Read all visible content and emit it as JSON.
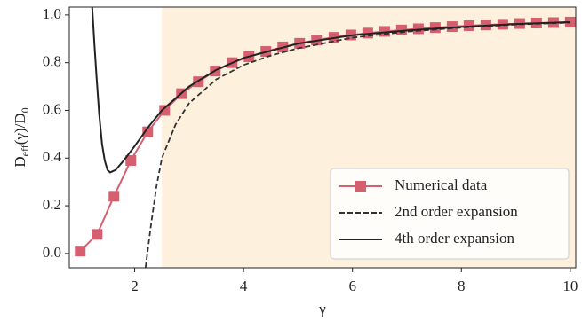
{
  "chart_data": {
    "type": "line",
    "xlabel": "γ",
    "ylabel": [
      "D",
      "eff",
      "(γ)/D",
      "0"
    ],
    "xlim": [
      0.8,
      10.1
    ],
    "ylim": [
      -0.06,
      1.033
    ],
    "xticks": [
      2,
      4,
      6,
      8,
      10
    ],
    "yticks": [
      {
        "value": 0,
        "label": "0.0"
      },
      0.2,
      0.4,
      0.6,
      0.8,
      {
        "value": 1,
        "label": "1.0"
      }
    ],
    "shade": {
      "xmin": 2.5,
      "color": "#fdf0dc"
    },
    "legend": "lower right",
    "series": [
      {
        "name": "Numerical data",
        "color": "#d65f6f",
        "style": "solid",
        "marker": "square",
        "x": [
          1.0,
          1.31,
          1.62,
          1.93,
          2.24,
          2.55,
          2.86,
          3.17,
          3.48,
          3.79,
          4.1,
          4.41,
          4.72,
          5.03,
          5.34,
          5.66,
          5.97,
          6.28,
          6.59,
          6.9,
          7.21,
          7.52,
          7.83,
          8.14,
          8.45,
          8.76,
          9.07,
          9.38,
          9.69,
          10.0
        ],
        "values": [
          0.01,
          0.08,
          0.24,
          0.39,
          0.51,
          0.6,
          0.67,
          0.72,
          0.765,
          0.8,
          0.825,
          0.847,
          0.866,
          0.881,
          0.895,
          0.906,
          0.916,
          0.924,
          0.931,
          0.937,
          0.942,
          0.947,
          0.951,
          0.955,
          0.958,
          0.961,
          0.964,
          0.966,
          0.968,
          0.97
        ]
      },
      {
        "name": "2nd order expansion",
        "color": "#333333",
        "style": "dashed",
        "x": [
          2.2,
          2.3,
          2.4,
          2.5,
          2.75,
          3,
          3.5,
          4,
          4.5,
          5,
          6,
          7,
          8,
          9,
          10
        ],
        "values": [
          -0.06,
          0.12,
          0.28,
          0.4,
          0.54,
          0.63,
          0.73,
          0.79,
          0.83,
          0.86,
          0.905,
          0.93,
          0.947,
          0.96,
          0.968
        ]
      },
      {
        "name": "4th order expansion",
        "color": "#222222",
        "style": "solid",
        "x": [
          1.22,
          1.26,
          1.3,
          1.35,
          1.4,
          1.45,
          1.5,
          1.55,
          1.65,
          1.8,
          2.0,
          2.25,
          2.5,
          3,
          3.5,
          4,
          5,
          6,
          7,
          8,
          9,
          10
        ],
        "values": [
          1.033,
          0.88,
          0.74,
          0.58,
          0.46,
          0.39,
          0.35,
          0.34,
          0.35,
          0.39,
          0.45,
          0.53,
          0.6,
          0.7,
          0.77,
          0.82,
          0.88,
          0.915,
          0.935,
          0.95,
          0.962,
          0.97
        ]
      }
    ]
  }
}
